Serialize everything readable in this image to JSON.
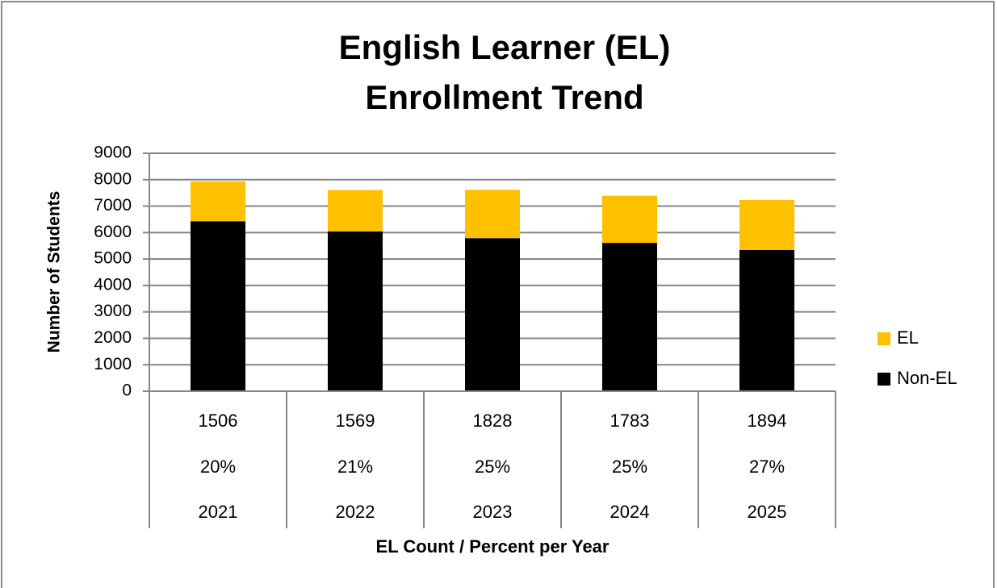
{
  "chart_data": {
    "type": "stacked_bar",
    "title": [
      "English Learner (EL)",
      "Enrollment Trend"
    ],
    "y_label": "Number of Students",
    "x_label": "EL Count / Percent per Year",
    "categories": [
      "2021",
      "2022",
      "2023",
      "2024",
      "2025"
    ],
    "percent_labels": [
      "20%",
      "21%",
      "25%",
      "25%",
      "27%"
    ],
    "series": [
      {
        "name": "Non-EL",
        "color": "#000000",
        "values": [
          6430,
          6040,
          5790,
          5610,
          5340
        ]
      },
      {
        "name": "EL",
        "color": "#ffc000",
        "values": [
          1506,
          1569,
          1828,
          1783,
          1894
        ]
      }
    ],
    "ylim": [
      0,
      9000
    ],
    "yticks": [
      0,
      1000,
      2000,
      3000,
      4000,
      5000,
      6000,
      7000,
      8000,
      9000
    ],
    "grid": true,
    "legend": "right"
  }
}
